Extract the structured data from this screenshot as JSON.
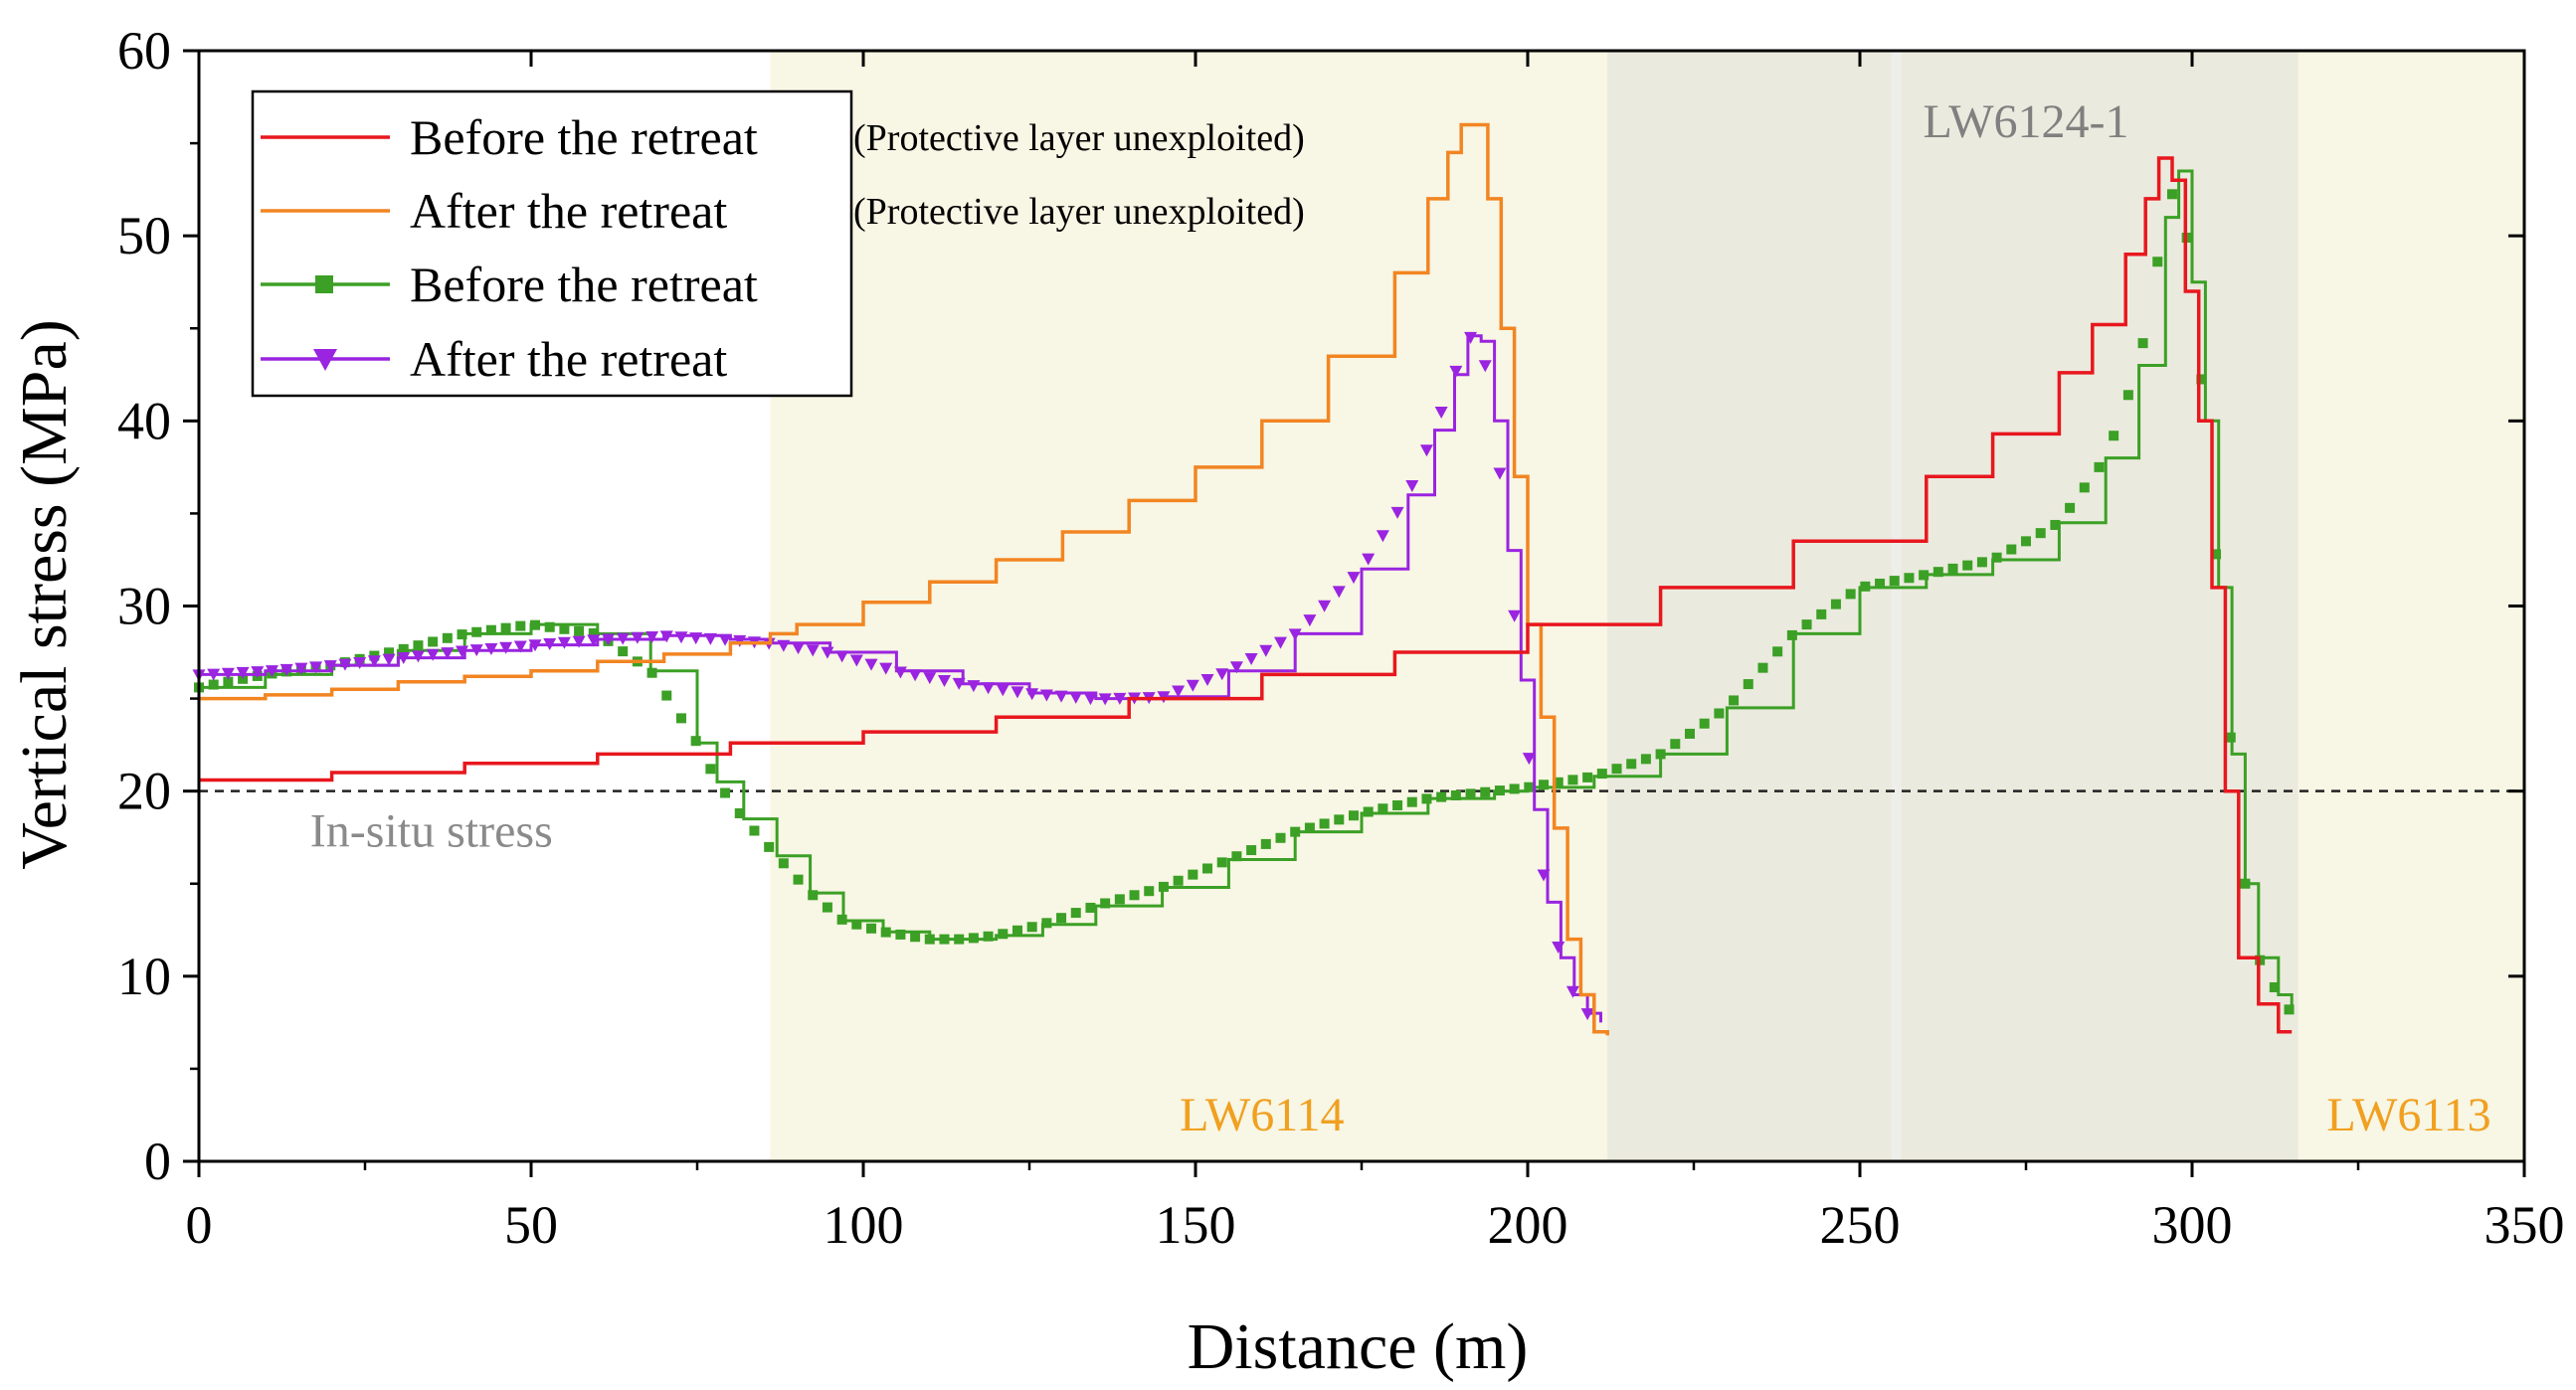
{
  "chart_data": {
    "type": "line",
    "title": "",
    "xlabel": "Distance (m)",
    "ylabel": "Vertical stress (MPa)",
    "xlim": [
      0,
      350
    ],
    "ylim": [
      0,
      60
    ],
    "xticks": [
      0,
      50,
      100,
      150,
      200,
      250,
      300,
      350
    ],
    "yticks": [
      0,
      10,
      20,
      30,
      40,
      50,
      60
    ],
    "grid": false,
    "legend_position": "top-left",
    "reference_line": {
      "y": 20,
      "label": "In-situ stress",
      "style": "dashed"
    },
    "regions": [
      {
        "label": "LW6114",
        "x": [
          86,
          212
        ],
        "color": "#f8f6e4",
        "label_color": "#f0a020"
      },
      {
        "label": "LW6124-1",
        "x": [
          212,
          316
        ],
        "color": "#ebeade",
        "label_color": "#808080"
      },
      {
        "label": "LW6113",
        "x": [
          316,
          350
        ],
        "color": "#f8f6e4",
        "label_color": "#f0a020"
      }
    ],
    "series": [
      {
        "name": "Before the retreat",
        "note": "(Protective layer unexploited)",
        "color": "#e8171e",
        "marker": "none",
        "x": [
          0,
          20,
          40,
          60,
          80,
          100,
          120,
          140,
          160,
          180,
          200,
          220,
          240,
          260,
          270,
          280,
          285,
          290,
          293,
          295,
          297,
          299,
          301,
          303,
          305,
          307,
          310,
          313,
          315
        ],
        "y": [
          20.6,
          21.0,
          21.5,
          22.0,
          22.6,
          23.2,
          24.0,
          25.0,
          26.3,
          27.5,
          29.0,
          31.0,
          33.5,
          37.0,
          39.3,
          42.6,
          45.2,
          49.0,
          52.0,
          54.2,
          53.0,
          47.0,
          40.0,
          31.0,
          20.0,
          11.0,
          8.5,
          7.0,
          7.0
        ]
      },
      {
        "name": "After the retreat",
        "note": "(Protective layer unexploited)",
        "color": "#f28522",
        "marker": "none",
        "x": [
          0,
          10,
          20,
          30,
          40,
          50,
          60,
          70,
          80,
          86,
          90,
          100,
          110,
          120,
          130,
          140,
          150,
          160,
          170,
          180,
          185,
          188,
          190,
          192,
          194,
          196,
          198,
          200,
          202,
          204,
          206,
          208,
          210,
          212
        ],
        "y": [
          25.0,
          25.2,
          25.5,
          25.9,
          26.2,
          26.5,
          27.0,
          27.4,
          28.0,
          28.5,
          29.0,
          30.2,
          31.3,
          32.5,
          34.0,
          35.7,
          37.5,
          40.0,
          43.5,
          48.0,
          52.0,
          54.5,
          56.0,
          56.0,
          52.0,
          45.0,
          37.0,
          29.0,
          24.0,
          18.0,
          12.0,
          9.0,
          7.0,
          6.8
        ]
      },
      {
        "name": "Before the retreat",
        "note": "",
        "color": "#3ba025",
        "marker": "square",
        "x": [
          0,
          10,
          20,
          30,
          40,
          50,
          60,
          68,
          75,
          78,
          82,
          87,
          92,
          97,
          103,
          110,
          115,
          120,
          127,
          135,
          145,
          155,
          165,
          175,
          185,
          195,
          200,
          210,
          220,
          230,
          240,
          250,
          260,
          270,
          280,
          287,
          292,
          296,
          298,
          300,
          302,
          304,
          306,
          308,
          310,
          313,
          315
        ],
        "y": [
          25.6,
          26.3,
          26.8,
          27.6,
          28.5,
          29.0,
          28.5,
          26.5,
          22.6,
          20.5,
          18.5,
          16.5,
          14.5,
          13.0,
          12.4,
          12.0,
          12.0,
          12.2,
          12.8,
          13.8,
          14.8,
          16.3,
          17.8,
          18.8,
          19.6,
          20.0,
          20.2,
          20.8,
          22.0,
          24.5,
          28.5,
          31.0,
          31.7,
          32.5,
          34.5,
          38.0,
          43.0,
          51.0,
          53.5,
          47.5,
          40.0,
          31.0,
          22.0,
          15.0,
          11.0,
          9.0,
          8.0
        ]
      },
      {
        "name": "After the retreat",
        "note": "",
        "color": "#9a24e0",
        "marker": "triangle-down",
        "x": [
          0,
          10,
          20,
          30,
          40,
          50,
          60,
          70,
          80,
          86,
          95,
          105,
          115,
          125,
          135,
          145,
          155,
          165,
          175,
          182,
          186,
          189,
          191,
          193,
          195,
          197,
          199,
          201,
          203,
          205,
          207,
          209,
          211
        ],
        "y": [
          26.3,
          26.5,
          26.8,
          27.2,
          27.6,
          27.9,
          28.2,
          28.4,
          28.2,
          28.0,
          27.5,
          26.5,
          25.8,
          25.3,
          25.0,
          25.1,
          26.5,
          28.5,
          32.0,
          36.0,
          39.5,
          42.5,
          44.6,
          44.3,
          40.0,
          33.0,
          26.0,
          19.0,
          14.0,
          11.0,
          9.0,
          8.0,
          7.5
        ]
      }
    ]
  }
}
